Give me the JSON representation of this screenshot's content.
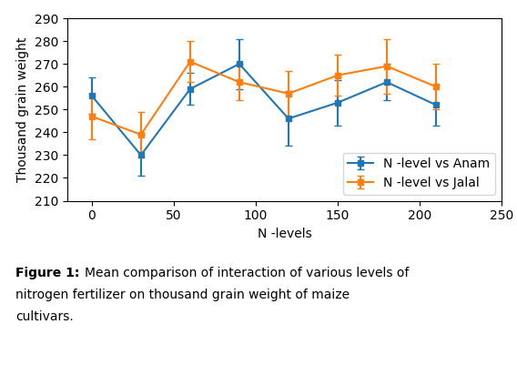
{
  "chart_data": {
    "type": "line",
    "x": [
      0,
      30,
      60,
      90,
      120,
      150,
      180,
      210
    ],
    "series": [
      {
        "name": "N -level vs Anam",
        "values": [
          256,
          230,
          259,
          270,
          246,
          253,
          262,
          252
        ],
        "yerr": [
          8,
          9,
          7,
          11,
          12,
          10,
          8,
          9
        ],
        "marker": "square"
      },
      {
        "name": "N -level vs Jalal",
        "values": [
          247,
          239,
          271,
          262,
          257,
          265,
          269,
          260
        ],
        "yerr": [
          10,
          10,
          9,
          8,
          10,
          9,
          12,
          10
        ],
        "marker": "square"
      }
    ],
    "xlim": [
      -15,
      250
    ],
    "ylim": [
      210,
      290
    ],
    "xticks": [
      0,
      50,
      100,
      150,
      200,
      250
    ],
    "yticks": [
      210,
      220,
      230,
      240,
      250,
      260,
      270,
      280,
      290
    ],
    "x_label": "N -levels",
    "y_label": "Thousand grain weight",
    "legend": "lower right",
    "annotations": [
      "Figure 1:",
      "Mean comparison of interaction of various levels of",
      "nitrogen fertilizer on thousand grain weight of maize",
      "cultivars."
    ]
  }
}
